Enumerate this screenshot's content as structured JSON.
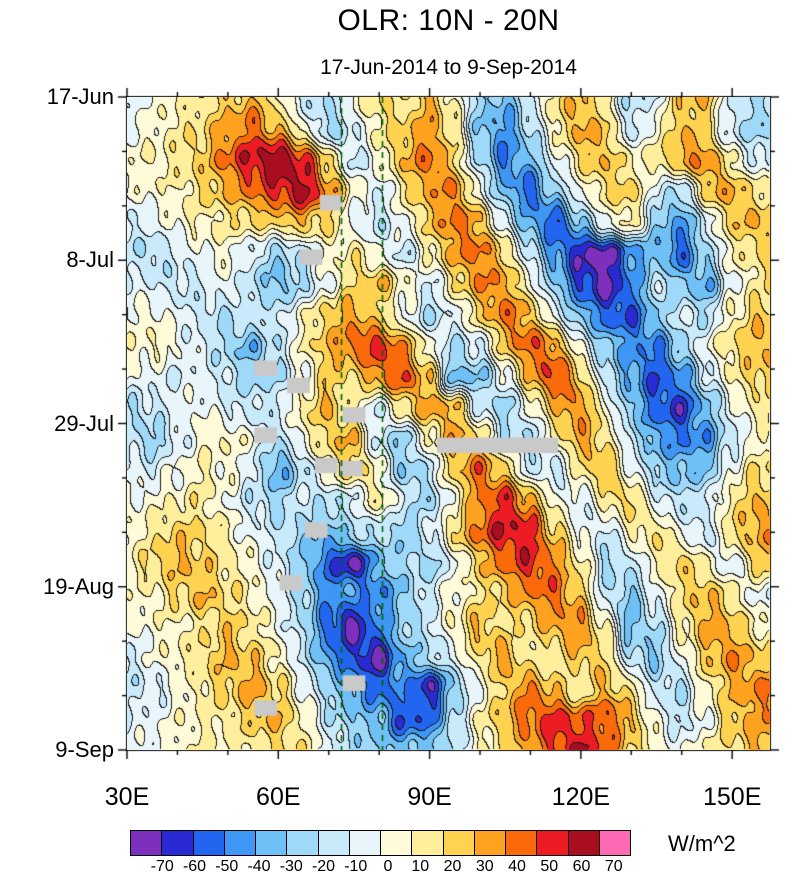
{
  "title": "OLR: 10N - 20N",
  "subtitle": "17-Jun-2014 to 9-Sep-2014",
  "colorbar": {
    "unit_label": "W/m^2",
    "tick_labels": [
      "-70",
      "-60",
      "-50",
      "-40",
      "-30",
      "-20",
      "-10",
      "0",
      "10",
      "20",
      "30",
      "40",
      "50",
      "60",
      "70"
    ],
    "colors": [
      "#7D2FBE",
      "#2A2AD4",
      "#2266F0",
      "#3E96F5",
      "#6FC0F7",
      "#9FD9FA",
      "#C8EAFB",
      "#E8F6FC",
      "#FFFBD8",
      "#FFEE9B",
      "#FFD34F",
      "#FFA21F",
      "#FB6A0A",
      "#ED1C24",
      "#A80D20",
      "#FF69B4"
    ]
  },
  "axes": {
    "x": {
      "range_lon": [
        30,
        157.5
      ],
      "major": [
        {
          "lon": 30,
          "label": "30E"
        },
        {
          "lon": 60,
          "label": "60E"
        },
        {
          "lon": 90,
          "label": "90E"
        },
        {
          "lon": 120,
          "label": "120E"
        },
        {
          "lon": 150,
          "label": "150E"
        }
      ],
      "minor_lons": [
        40,
        50,
        70,
        80,
        100,
        110,
        130,
        140
      ]
    },
    "y": {
      "range_days": [
        0,
        84
      ],
      "major": [
        {
          "day": 0,
          "label": "17-Jun"
        },
        {
          "day": 21,
          "label": "8-Jul"
        },
        {
          "day": 42,
          "label": "29-Jul"
        },
        {
          "day": 63,
          "label": "19-Aug"
        },
        {
          "day": 84,
          "label": "9-Sep"
        }
      ],
      "minor_days": [
        7,
        14,
        28,
        35,
        49,
        56,
        70,
        77
      ]
    }
  },
  "chart_data": {
    "type": "heatmap",
    "title": "OLR: 10N - 20N",
    "subtitle": "17-Jun-2014 to 9-Sep-2014",
    "units": "W/m^2",
    "start_date": "17-Jun-2014",
    "end_date": "9-Sep-2014",
    "levels": [
      -70,
      -60,
      -50,
      -40,
      -30,
      -20,
      -10,
      0,
      10,
      20,
      30,
      40,
      50,
      60,
      70
    ],
    "reference_lines_lon": [
      72.5,
      80.5
    ],
    "reference_line_color": "#006400",
    "missing_data_color": "#c9c9c9",
    "lons": [
      30,
      35,
      40,
      45,
      50,
      55,
      60,
      65,
      70,
      75,
      80,
      85,
      90,
      95,
      100,
      105,
      110,
      115,
      120,
      125,
      130,
      135,
      140,
      145,
      150,
      155
    ],
    "days_since_start": [
      0,
      4,
      8,
      12,
      16,
      20,
      24,
      28,
      32,
      36,
      40,
      44,
      48,
      52,
      56,
      60,
      64,
      68,
      72,
      76,
      80,
      84
    ],
    "values": [
      [
        -5,
        0,
        10,
        15,
        25,
        30,
        10,
        -15,
        -20,
        5,
        20,
        15,
        30,
        10,
        -25,
        -35,
        -10,
        20,
        30,
        10,
        -20,
        -10,
        25,
        30,
        -10,
        -20
      ],
      [
        0,
        5,
        15,
        20,
        35,
        45,
        30,
        5,
        -25,
        -10,
        15,
        25,
        35,
        15,
        -30,
        -45,
        -20,
        10,
        35,
        25,
        -15,
        5,
        30,
        20,
        -15,
        -25
      ],
      [
        5,
        10,
        15,
        25,
        45,
        60,
        68,
        55,
        20,
        -15,
        5,
        30,
        45,
        20,
        -20,
        -50,
        -35,
        -5,
        20,
        30,
        10,
        15,
        35,
        40,
        10,
        -10
      ],
      [
        0,
        5,
        10,
        20,
        30,
        45,
        55,
        65,
        40,
        10,
        -10,
        15,
        35,
        40,
        0,
        -35,
        -55,
        -25,
        0,
        20,
        25,
        -10,
        -20,
        25,
        35,
        15
      ],
      [
        -10,
        -5,
        5,
        10,
        15,
        20,
        25,
        30,
        20,
        -5,
        -15,
        0,
        25,
        45,
        30,
        -10,
        -40,
        -60,
        -30,
        0,
        15,
        -25,
        -45,
        -10,
        25,
        30
      ],
      [
        -15,
        -20,
        -10,
        0,
        5,
        -10,
        -25,
        -15,
        5,
        15,
        0,
        -15,
        10,
        35,
        45,
        20,
        -15,
        -45,
        -70,
        -75,
        -45,
        -35,
        -55,
        -25,
        10,
        20
      ],
      [
        -5,
        -10,
        -15,
        -10,
        0,
        -20,
        -35,
        -20,
        0,
        20,
        30,
        10,
        -10,
        15,
        40,
        35,
        5,
        -30,
        -60,
        -75,
        -50,
        -15,
        -30,
        -40,
        -5,
        15
      ],
      [
        0,
        5,
        -5,
        -15,
        -20,
        -10,
        -15,
        5,
        25,
        35,
        20,
        0,
        -20,
        -5,
        20,
        45,
        30,
        -5,
        -35,
        -55,
        -60,
        -30,
        -10,
        -20,
        10,
        25
      ],
      [
        5,
        10,
        0,
        -10,
        -25,
        -35,
        -15,
        10,
        30,
        45,
        55,
        35,
        5,
        -20,
        -10,
        25,
        50,
        35,
        0,
        -30,
        -45,
        -50,
        -25,
        0,
        20,
        30
      ],
      [
        0,
        -5,
        -10,
        -5,
        -15,
        -25,
        -20,
        0,
        25,
        20,
        40,
        50,
        25,
        -35,
        -30,
        -5,
        30,
        55,
        25,
        -15,
        -40,
        -60,
        -45,
        -15,
        10,
        25
      ],
      [
        -20,
        -15,
        -5,
        0,
        -10,
        -15,
        -10,
        15,
        30,
        10,
        -10,
        20,
        35,
        30,
        -10,
        -25,
        0,
        30,
        40,
        5,
        -30,
        -55,
        -65,
        -35,
        -5,
        15
      ],
      [
        -15,
        -25,
        -10,
        5,
        10,
        0,
        -20,
        5,
        25,
        30,
        -15,
        -25,
        10,
        35,
        20,
        -15,
        -20,
        10,
        35,
        20,
        -15,
        -40,
        -50,
        -45,
        -15,
        5
      ],
      [
        -5,
        -10,
        0,
        10,
        5,
        -10,
        -40,
        -20,
        10,
        25,
        5,
        -30,
        -15,
        25,
        45,
        25,
        -10,
        -15,
        15,
        30,
        0,
        -25,
        -35,
        -30,
        0,
        20
      ],
      [
        0,
        5,
        10,
        15,
        0,
        -15,
        -25,
        -10,
        -20,
        -10,
        15,
        -10,
        -25,
        5,
        40,
        55,
        35,
        5,
        -10,
        15,
        25,
        -5,
        -20,
        -10,
        15,
        30
      ],
      [
        5,
        15,
        25,
        20,
        10,
        -5,
        -15,
        -25,
        -35,
        -20,
        -15,
        -30,
        -10,
        20,
        45,
        60,
        55,
        25,
        0,
        -15,
        10,
        20,
        0,
        -15,
        20,
        35
      ],
      [
        10,
        20,
        30,
        25,
        15,
        5,
        -10,
        -30,
        -55,
        -75,
        -35,
        -20,
        -25,
        -5,
        25,
        45,
        55,
        40,
        15,
        -20,
        -15,
        10,
        25,
        10,
        -10,
        25
      ],
      [
        5,
        10,
        20,
        30,
        20,
        10,
        -5,
        -25,
        -45,
        -40,
        -50,
        -30,
        -10,
        5,
        15,
        25,
        40,
        45,
        25,
        -15,
        -30,
        -5,
        20,
        30,
        15,
        -5
      ],
      [
        0,
        5,
        10,
        15,
        25,
        15,
        0,
        -20,
        -55,
        -75,
        -45,
        -25,
        -15,
        10,
        30,
        15,
        20,
        35,
        40,
        10,
        -35,
        -20,
        10,
        35,
        30,
        10
      ],
      [
        -10,
        0,
        10,
        20,
        30,
        25,
        10,
        -15,
        -45,
        -60,
        -75,
        -35,
        -20,
        -5,
        20,
        35,
        10,
        15,
        30,
        20,
        -20,
        -30,
        0,
        25,
        40,
        25
      ],
      [
        -15,
        -10,
        0,
        15,
        25,
        35,
        20,
        0,
        -25,
        -40,
        -55,
        -45,
        -70,
        -30,
        0,
        25,
        40,
        25,
        10,
        30,
        15,
        -15,
        -20,
        10,
        30,
        40
      ],
      [
        -10,
        -5,
        5,
        10,
        15,
        25,
        30,
        10,
        -15,
        -30,
        -35,
        -60,
        -55,
        -20,
        10,
        30,
        45,
        55,
        45,
        50,
        30,
        0,
        -15,
        0,
        25,
        35
      ],
      [
        -5,
        0,
        5,
        10,
        10,
        15,
        20,
        15,
        -5,
        -20,
        -30,
        -35,
        -30,
        -15,
        5,
        20,
        35,
        50,
        62,
        45,
        25,
        10,
        -5,
        10,
        20,
        30
      ]
    ],
    "missing_blocks": [
      {
        "lon": 70.5,
        "day": 13.6
      },
      {
        "lon": 66.5,
        "day": 20.6
      },
      {
        "lon": 57.5,
        "day": 34.9
      },
      {
        "lon": 64.0,
        "day": 37.1
      },
      {
        "lon": 75.0,
        "day": 40.9
      },
      {
        "lon": 57.5,
        "day": 43.5
      },
      {
        "lon": 69.5,
        "day": 47.4
      },
      {
        "lon": 74.5,
        "day": 47.8
      },
      {
        "lon": 103.5,
        "day": 44.8,
        "dlon": 24
      },
      {
        "lon": 67.5,
        "day": 55.7
      },
      {
        "lon": 62.5,
        "day": 62.5
      },
      {
        "lon": 75.0,
        "day": 75.4
      },
      {
        "lon": 57.5,
        "day": 78.6
      }
    ]
  }
}
